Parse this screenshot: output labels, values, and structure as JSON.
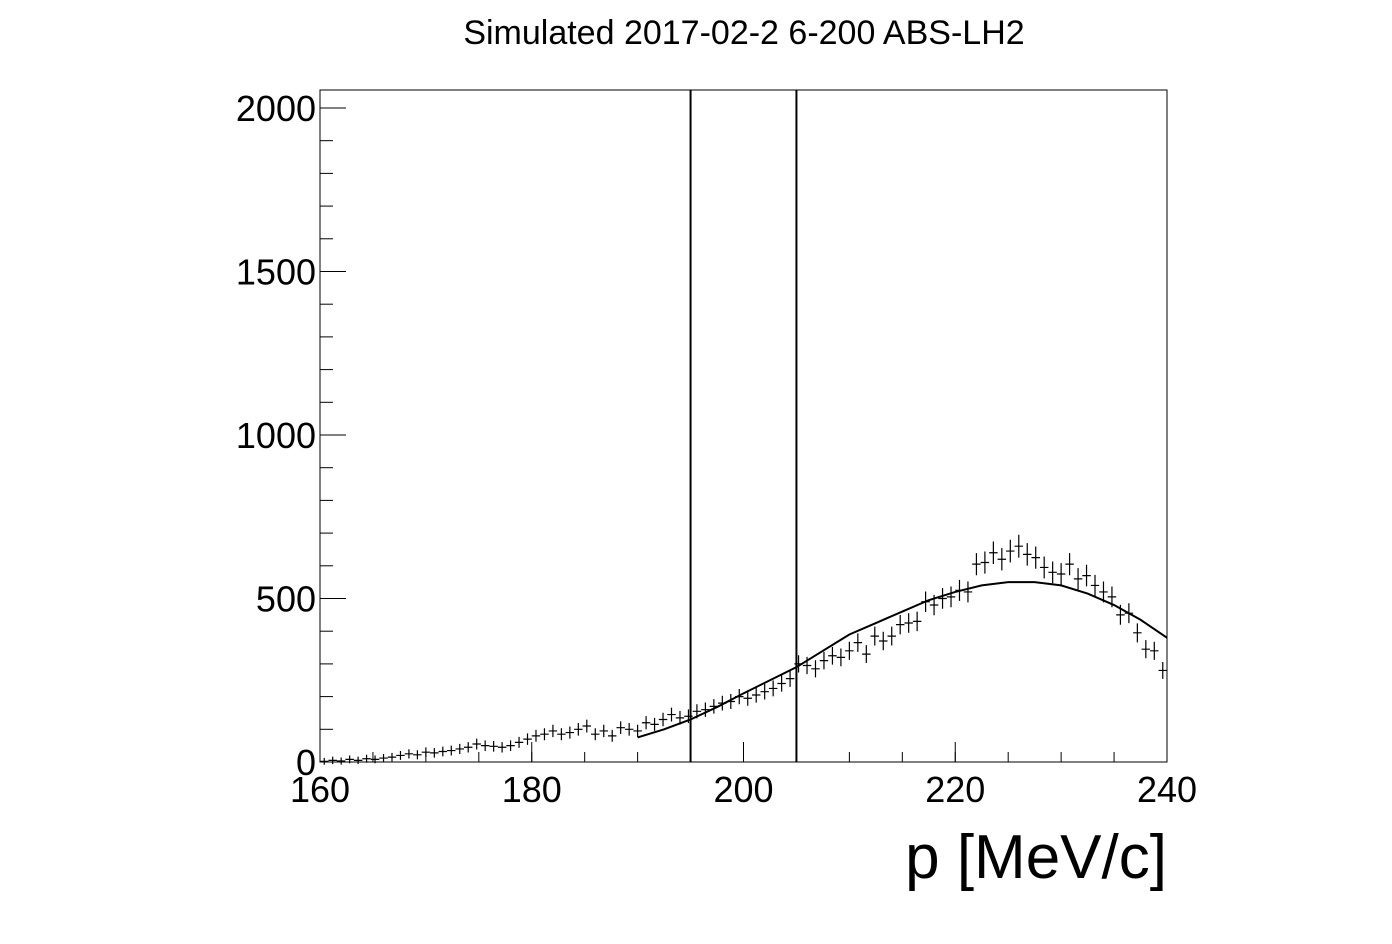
{
  "chart_data": {
    "type": "scatter",
    "title": "Simulated 2017-02-2 6-200 ABS-LH2",
    "x_label": "p [MeV/c]",
    "xlim": [
      160,
      240
    ],
    "ylim": [
      0,
      2055
    ],
    "xticks": [
      160,
      180,
      200,
      220,
      240
    ],
    "yticks": [
      0,
      500,
      1000,
      1500,
      2000
    ],
    "x": [
      160.4,
      161.2,
      162,
      162.8,
      163.6,
      164.4,
      165.2,
      166,
      166.8,
      167.6,
      168.4,
      169.2,
      170,
      170.8,
      171.6,
      172.4,
      173.2,
      174,
      174.8,
      175.6,
      176.4,
      177.2,
      178,
      178.8,
      179.6,
      180.4,
      181.2,
      182,
      182.8,
      183.6,
      184.4,
      185.2,
      186,
      186.8,
      187.6,
      188.4,
      189.2,
      190,
      190.8,
      191.6,
      192.4,
      193.2,
      194,
      194.8,
      195.6,
      196.4,
      197.2,
      198,
      198.8,
      199.6,
      200.4,
      201.2,
      202,
      202.8,
      203.6,
      204.4,
      205.2,
      206,
      206.8,
      207.6,
      208.4,
      209.2,
      210,
      210.8,
      211.6,
      212.4,
      213.2,
      214,
      214.8,
      215.6,
      216.4,
      217.2,
      218,
      218.8,
      219.6,
      220.4,
      221.2,
      222,
      222.8,
      223.6,
      224.4,
      225.2,
      226,
      226.8,
      227.6,
      228.4,
      229.2,
      230,
      230.8,
      231.6,
      232.4,
      233.2,
      234,
      234.8,
      235.6,
      236.4,
      237.2,
      238,
      238.8,
      239.6
    ],
    "values": [
      2,
      5,
      3,
      8,
      5,
      10,
      8,
      12,
      15,
      20,
      25,
      22,
      30,
      28,
      32,
      35,
      40,
      45,
      55,
      50,
      48,
      45,
      50,
      60,
      70,
      80,
      85,
      95,
      85,
      90,
      100,
      110,
      85,
      95,
      80,
      105,
      100,
      95,
      120,
      115,
      130,
      145,
      135,
      140,
      155,
      160,
      170,
      180,
      185,
      200,
      195,
      205,
      215,
      225,
      240,
      255,
      300,
      295,
      285,
      310,
      325,
      320,
      340,
      365,
      330,
      385,
      370,
      385,
      420,
      425,
      430,
      490,
      480,
      500,
      505,
      525,
      520,
      605,
      610,
      640,
      620,
      645,
      660,
      635,
      625,
      595,
      580,
      575,
      605,
      560,
      570,
      540,
      520,
      505,
      450,
      455,
      395,
      345,
      340,
      280
    ],
    "fit": {
      "x": [
        190,
        192.5,
        195,
        197.5,
        200,
        202.5,
        205,
        207.5,
        210,
        212.5,
        215,
        217.5,
        220,
        222.5,
        225,
        227.5,
        230,
        232.5,
        235,
        237.5,
        240
      ],
      "values": [
        75,
        100,
        130,
        168,
        210,
        250,
        290,
        340,
        390,
        425,
        460,
        495,
        520,
        540,
        550,
        550,
        540,
        515,
        480,
        435,
        380
      ]
    },
    "vlines": [
      195,
      205
    ]
  }
}
